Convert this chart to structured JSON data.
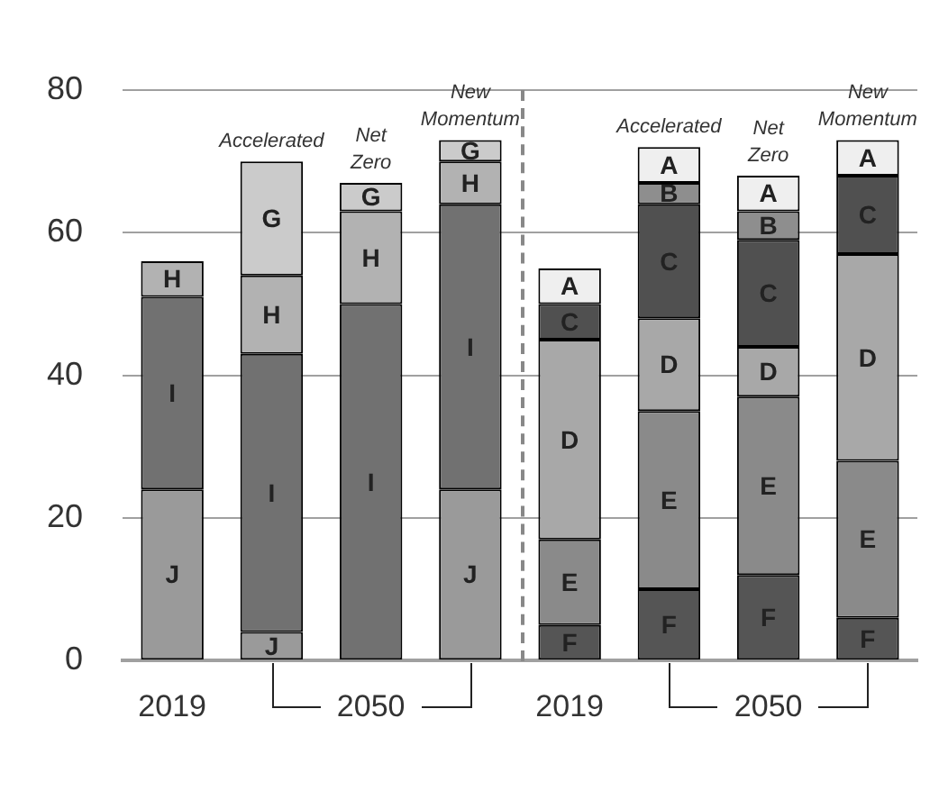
{
  "chart_data": {
    "type": "bar",
    "stacked": true,
    "categories": [
      "2019",
      null,
      "2050",
      null,
      "2019",
      null,
      "2050",
      null
    ],
    "series": [
      {
        "name": "J",
        "color": "#9a9a9a",
        "values": [
          24,
          4,
          null,
          24,
          null,
          null,
          null,
          null
        ]
      },
      {
        "name": "I",
        "color": "#717171",
        "values": [
          27,
          39,
          50,
          40,
          null,
          null,
          null,
          null
        ]
      },
      {
        "name": "H",
        "color": "#b2b2b2",
        "values": [
          5,
          11,
          13,
          6,
          null,
          null,
          null,
          null
        ]
      },
      {
        "name": "G",
        "color": "#cbcbcb",
        "values": [
          null,
          16,
          4,
          3,
          null,
          null,
          null,
          null
        ]
      },
      {
        "name": "F",
        "color": "#555555",
        "values": [
          null,
          null,
          null,
          null,
          5,
          10,
          12,
          6
        ]
      },
      {
        "name": "E",
        "color": "#8a8a8a",
        "values": [
          null,
          null,
          null,
          null,
          12,
          25,
          25,
          22
        ]
      },
      {
        "name": "D",
        "color": "#a8a8a8",
        "values": [
          null,
          null,
          null,
          null,
          28,
          13,
          7,
          29
        ]
      },
      {
        "name": "C",
        "color": "#505050",
        "values": [
          null,
          null,
          null,
          null,
          5,
          16,
          15,
          11
        ]
      },
      {
        "name": "B",
        "color": "#8e8e8e",
        "values": [
          null,
          null,
          null,
          null,
          null,
          3,
          4,
          null
        ]
      },
      {
        "name": "A",
        "color": "#efefef",
        "values": [
          null,
          null,
          null,
          null,
          5,
          5,
          5,
          5
        ]
      }
    ],
    "ylim": [
      0,
      80
    ],
    "yticks": [
      0,
      20,
      40,
      60,
      80
    ],
    "grid": "y",
    "legend": false,
    "annotations": [
      "Accelerated",
      "Net Zero",
      "New Momentum",
      "Accelerated",
      "Net Zero",
      "New Momentum"
    ]
  }
}
